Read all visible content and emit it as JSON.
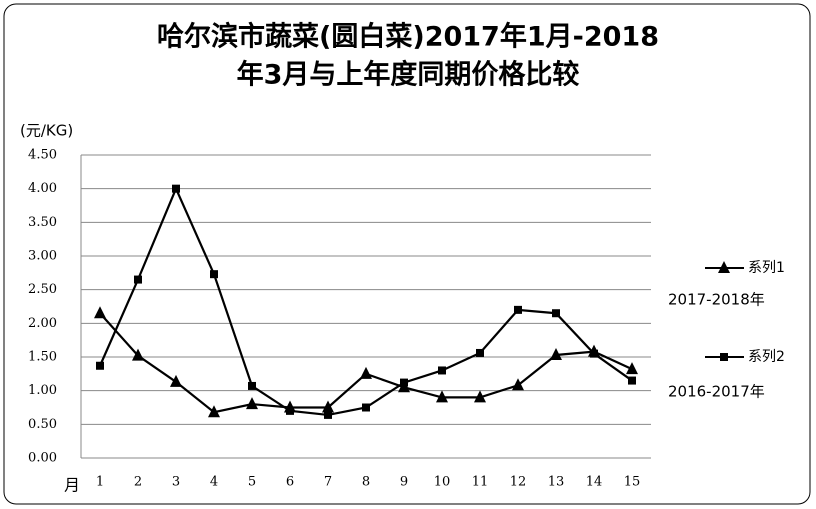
{
  "chart_data": {
    "type": "line",
    "title": [
      "哈尔滨市蔬菜(圆白菜)2017年1月-2018",
      "年3月与上年度同期价格比较"
    ],
    "y_label": "(元/KG)",
    "x_label": "月",
    "categories": [
      "1",
      "2",
      "3",
      "4",
      "5",
      "6",
      "7",
      "8",
      "9",
      "10",
      "11",
      "12",
      "13",
      "14",
      "15"
    ],
    "series": [
      {
        "name": "系列1",
        "color": "#000000",
        "marker": "triangle",
        "note": "2017-2018年",
        "values": [
          2.15,
          1.52,
          1.13,
          0.68,
          0.8,
          0.75,
          0.75,
          1.25,
          1.05,
          0.9,
          0.9,
          1.08,
          1.53,
          1.58,
          1.32
        ]
      },
      {
        "name": "系列2",
        "color": "#000000",
        "marker": "square",
        "note": "2016-2017年",
        "values": [
          1.37,
          2.65,
          4.0,
          2.73,
          1.07,
          0.7,
          0.64,
          0.75,
          1.12,
          1.3,
          1.56,
          2.2,
          2.15,
          1.55,
          1.15
        ]
      }
    ],
    "ylim": [
      0,
      4.5
    ],
    "yticks": [
      {
        "value": 0,
        "label": "0.00"
      },
      {
        "value": 0.5,
        "label": "0.50"
      },
      {
        "value": 1,
        "label": "1.00"
      },
      {
        "value": 1.5,
        "label": "1.50"
      },
      {
        "value": 2,
        "label": "2.00"
      },
      {
        "value": 2.5,
        "label": "2.50"
      },
      {
        "value": 3,
        "label": "3.00"
      },
      {
        "value": 3.5,
        "label": "3.50"
      },
      {
        "value": 4,
        "label": "4.00"
      },
      {
        "value": 4.5,
        "label": "4.50"
      }
    ],
    "grid": true,
    "legend": "right"
  }
}
